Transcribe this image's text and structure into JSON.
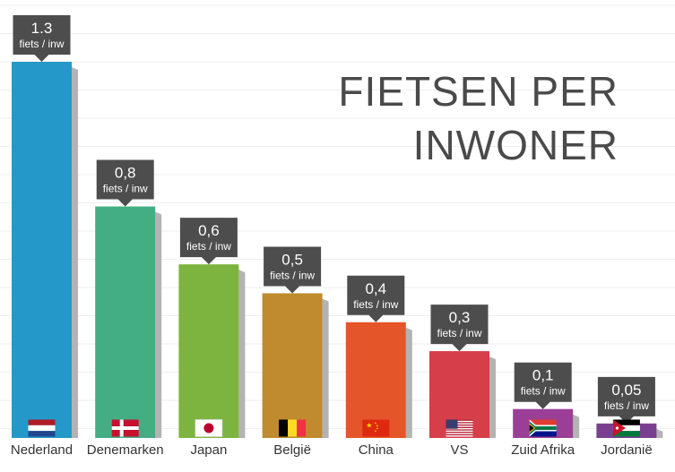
{
  "chart_data": {
    "type": "bar",
    "title_lines": [
      "FIETSEN PER",
      "INWONER"
    ],
    "categories": [
      "Nederland",
      "Denemarken",
      "Japan",
      "België",
      "China",
      "VS",
      "Zuid Afrika",
      "Jordanië"
    ],
    "values": [
      1.3,
      0.8,
      0.6,
      0.5,
      0.4,
      0.3,
      0.1,
      0.05
    ],
    "value_labels": [
      "1.3",
      "0,8",
      "0,6",
      "0,5",
      "0,4",
      "0,3",
      "0,1",
      "0,05"
    ],
    "unit_label": "fiets / inw",
    "colors": [
      "#2499c9",
      "#43ad84",
      "#7db440",
      "#bf8b2e",
      "#e5552a",
      "#d63e4a",
      "#9b3f96",
      "#7a3f8f"
    ],
    "flags": [
      "flag-netherlands-icon",
      "flag-denmark-icon",
      "flag-japan-icon",
      "flag-belgium-icon",
      "flag-china-icon",
      "flag-usa-icon",
      "flag-south-africa-icon",
      "flag-jordan-icon"
    ],
    "ylim": [
      0,
      1.3
    ],
    "grid": true,
    "label_box_color": "#4d4d4d",
    "shadow_color": "#b3b3b3"
  }
}
